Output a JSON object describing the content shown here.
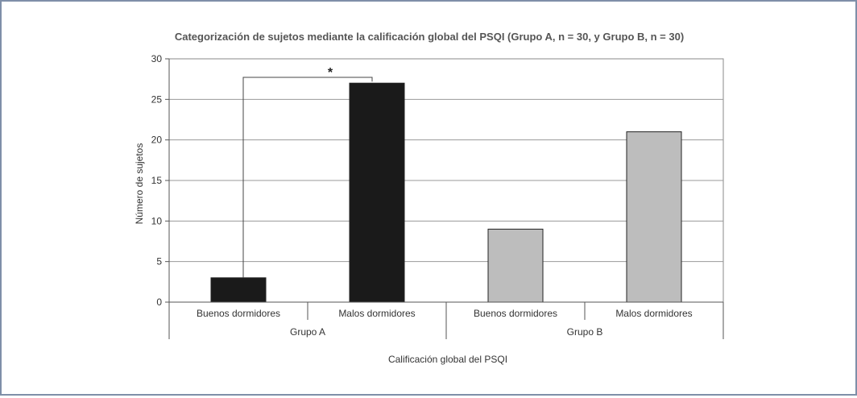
{
  "chart_data": {
    "type": "bar",
    "title": "Categorización de sujetos mediante la calificación global del PSQI (Grupo A, n = 30, y Grupo B, n = 30)",
    "xlabel": "Calificación global del PSQI",
    "ylabel": "Número de sujetos",
    "ylim": [
      0,
      30
    ],
    "yticks": [
      0,
      5,
      10,
      15,
      20,
      25,
      30
    ],
    "grid": true,
    "groups": [
      "Grupo A",
      "Grupo B"
    ],
    "categories": [
      "Buenos dormidores",
      "Malos dormidores",
      "Buenos dormidores",
      "Malos dormidores"
    ],
    "category_group": [
      0,
      0,
      1,
      1
    ],
    "values": [
      3,
      27,
      9,
      21
    ],
    "bar_colors": [
      "#1a1a1a",
      "#1a1a1a",
      "#bdbdbd",
      "#bdbdbd"
    ],
    "significance": {
      "between": [
        0,
        1
      ],
      "label": "*"
    }
  }
}
